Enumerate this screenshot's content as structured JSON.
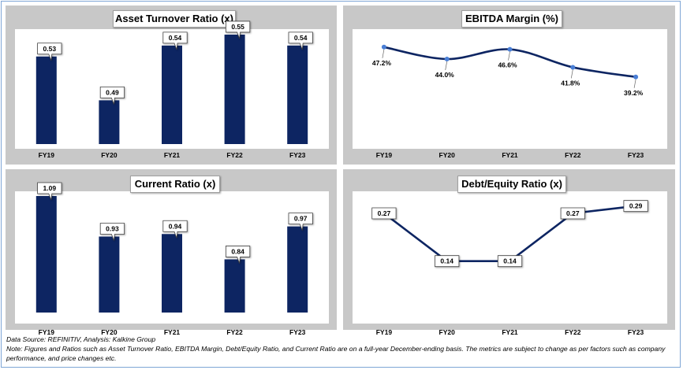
{
  "footnote": {
    "source": "Data Source: REFINITIV, Analysis: Kalkine Group",
    "note": "Note: Figures and Ratios such as Asset Turnover Ratio, EBITDA Margin, Debt/Equity Ratio, and Current Ratio  are on a full-year December-ending basis. The metrics are subject to change as per factors such as company performance, and price changes etc."
  },
  "colors": {
    "bar": "#0d2562",
    "line": "#0d2562",
    "marker": "#4a7fd6",
    "panel": "#c8c8c8"
  },
  "chart_data": [
    {
      "id": "asset-turnover",
      "type": "bar",
      "title": "Asset Turnover Ratio (x)",
      "categories": [
        "FY19",
        "FY20",
        "FY21",
        "FY22",
        "FY23"
      ],
      "values": [
        0.53,
        0.49,
        0.54,
        0.55,
        0.54
      ],
      "value_labels": [
        "0.53",
        "0.49",
        "0.54",
        "0.55",
        "0.54"
      ],
      "ylim": [
        0.45,
        0.555
      ]
    },
    {
      "id": "ebitda-margin",
      "type": "line",
      "title": "EBITDA Margin (%)",
      "categories": [
        "FY19",
        "FY20",
        "FY21",
        "FY22",
        "FY23"
      ],
      "values": [
        47.2,
        44.0,
        46.6,
        41.8,
        39.2
      ],
      "value_labels": [
        "47.2%",
        "44.0%",
        "46.6%",
        "41.8%",
        "39.2%"
      ],
      "ylim": [
        20,
        52
      ]
    },
    {
      "id": "current-ratio",
      "type": "bar",
      "title": "Current Ratio (x)",
      "categories": [
        "FY19",
        "FY20",
        "FY21",
        "FY22",
        "FY23"
      ],
      "values": [
        1.09,
        0.93,
        0.94,
        0.84,
        0.97
      ],
      "value_labels": [
        "1.09",
        "0.93",
        "0.94",
        "0.84",
        "0.97"
      ],
      "ylim": [
        0.63,
        1.09
      ]
    },
    {
      "id": "debt-equity",
      "type": "line",
      "title": "Debt/Equity Ratio (x)",
      "categories": [
        "FY19",
        "FY20",
        "FY21",
        "FY22",
        "FY23"
      ],
      "values": [
        0.27,
        0.14,
        0.14,
        0.27,
        0.29
      ],
      "value_labels": [
        "0.27",
        "0.14",
        "0.14",
        "0.27",
        "0.29"
      ],
      "ylim": [
        0.0,
        0.33
      ]
    }
  ]
}
